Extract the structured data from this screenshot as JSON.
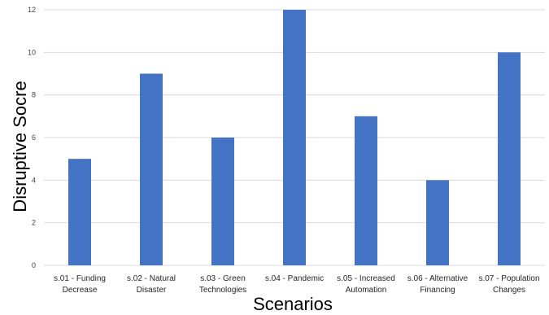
{
  "chart_data": {
    "type": "bar",
    "categories": [
      [
        "s.01 - Funding",
        "Decrease"
      ],
      [
        "s.02 - Natural",
        "Disaster"
      ],
      [
        "s.03 - Green",
        "Technologies"
      ],
      [
        "s.04 - Pandemic"
      ],
      [
        "s.05 - Increased",
        "Automation"
      ],
      [
        "s.06 - Alternative",
        "Financing"
      ],
      [
        "s.07 - Population",
        "Changes"
      ]
    ],
    "values": [
      5,
      9,
      6,
      12,
      7,
      4,
      10
    ],
    "xlabel": "Scenarios",
    "ylabel": "Disruptive Socre",
    "ylim": [
      0,
      12
    ],
    "yticks": [
      0,
      2,
      4,
      6,
      8,
      10,
      12
    ],
    "grid": true,
    "bar_color": "#4472c4",
    "grid_color": "#d9d9d9"
  }
}
